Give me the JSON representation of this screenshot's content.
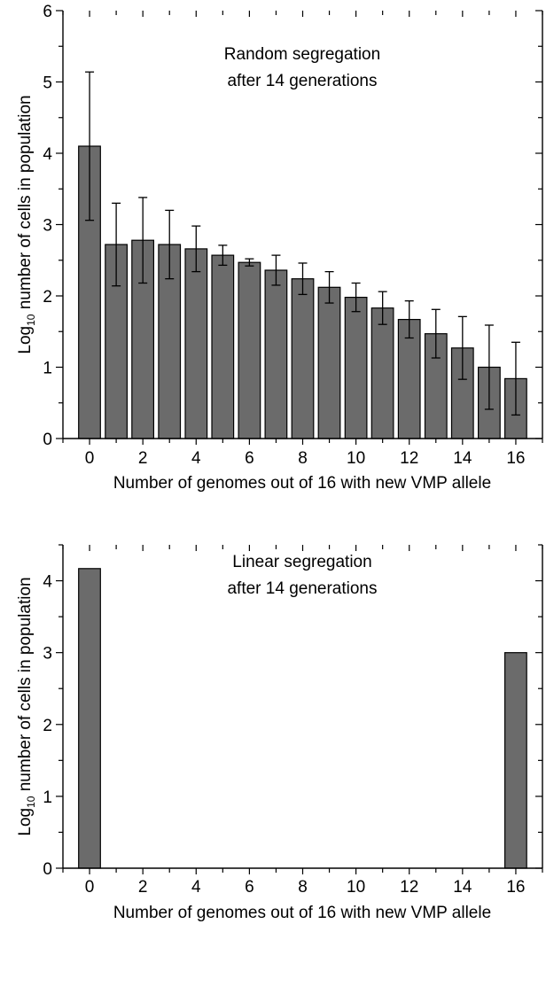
{
  "colors": {
    "bar": "#6b6b6b",
    "axis": "#000000"
  },
  "chart_data": [
    {
      "type": "bar",
      "annotation": [
        "Random segregation",
        "after 14 generations"
      ],
      "ylabel": {
        "prefix": "Log",
        "subscript": "10",
        "rest": " number of cells in population"
      },
      "xlabel": "Number of genomes out of 16 with new VMP allele",
      "ylim": [
        0,
        6
      ],
      "yticks": [
        0,
        1,
        2,
        3,
        4,
        5,
        6
      ],
      "xlim": [
        -1,
        17
      ],
      "xticks": [
        0,
        2,
        4,
        6,
        8,
        10,
        12,
        14,
        16
      ],
      "x": [
        0,
        1,
        2,
        3,
        4,
        5,
        6,
        7,
        8,
        9,
        10,
        11,
        12,
        13,
        14,
        15,
        16
      ],
      "values": [
        4.1,
        2.72,
        2.78,
        2.72,
        2.66,
        2.57,
        2.47,
        2.36,
        2.24,
        2.12,
        1.98,
        1.83,
        1.67,
        1.47,
        1.27,
        1.0,
        0.84
      ],
      "errors": [
        1.04,
        0.58,
        0.6,
        0.48,
        0.32,
        0.14,
        0.05,
        0.21,
        0.22,
        0.22,
        0.2,
        0.23,
        0.26,
        0.34,
        0.44,
        0.59,
        0.51
      ]
    },
    {
      "type": "bar",
      "annotation": [
        "Linear segregation",
        "after 14 generations"
      ],
      "ylabel": {
        "prefix": "Log",
        "subscript": "10",
        "rest": " number of cells in population"
      },
      "xlabel": "Number of genomes out of 16 with new VMP allele",
      "ylim": [
        0,
        4.5
      ],
      "yticks": [
        0,
        1,
        2,
        3,
        4
      ],
      "xlim": [
        -1,
        17
      ],
      "xticks": [
        0,
        2,
        4,
        6,
        8,
        10,
        12,
        14,
        16
      ],
      "x": [
        0,
        16
      ],
      "values": [
        4.17,
        3.0
      ]
    }
  ]
}
